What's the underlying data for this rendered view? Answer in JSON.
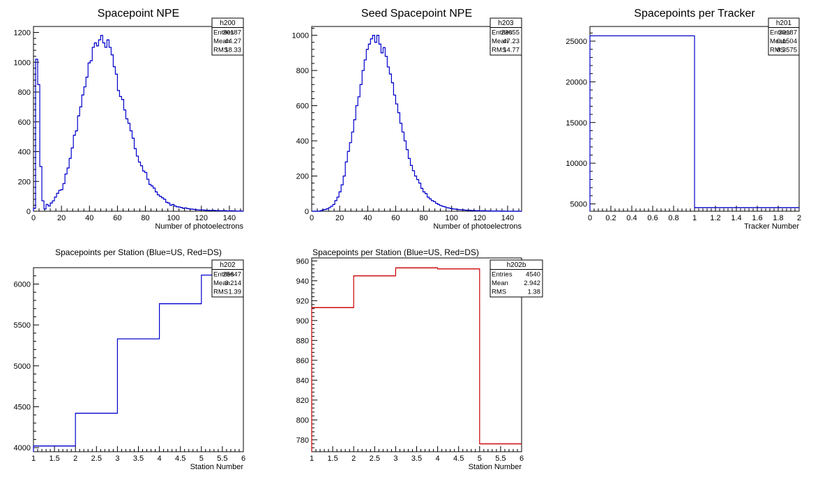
{
  "chart_data": [
    {
      "id": "h200",
      "type": "histogram",
      "title": "Spacepoint NPE",
      "xlabel": "Number of photoelectrons",
      "ylabel": "",
      "xlim": [
        0,
        150
      ],
      "ylim": [
        0,
        1240
      ],
      "xticks": [
        0,
        20,
        40,
        60,
        80,
        100,
        120,
        140
      ],
      "yticks": [
        0,
        200,
        400,
        600,
        800,
        1000,
        1200
      ],
      "line_color": "#0000cc",
      "bin_width": 1.5,
      "values": [
        20,
        1020,
        850,
        300,
        70,
        15,
        45,
        35,
        55,
        70,
        95,
        120,
        140,
        145,
        185,
        250,
        290,
        355,
        425,
        510,
        540,
        640,
        700,
        780,
        835,
        900,
        995,
        1010,
        1100,
        1130,
        1110,
        1150,
        1180,
        1130,
        1100,
        1150,
        1100,
        1050,
        970,
        920,
        810,
        770,
        750,
        680,
        620,
        590,
        540,
        490,
        420,
        370,
        330,
        305,
        270,
        260,
        215,
        180,
        170,
        155,
        130,
        110,
        100,
        90,
        80,
        60,
        55,
        40,
        45,
        35,
        30,
        28,
        25,
        20,
        22,
        18,
        15,
        14,
        12,
        10,
        9,
        8,
        9,
        7,
        6,
        6,
        5,
        6,
        5,
        4,
        4,
        3,
        3,
        4,
        2,
        2,
        3,
        2,
        2,
        1,
        2,
        1
      ],
      "stats": {
        "name": "h200",
        "rows": [
          [
            "Entries",
            "30187"
          ],
          [
            "Mean",
            "44.27"
          ],
          [
            "RMS",
            "18.33"
          ]
        ]
      }
    },
    {
      "id": "h203",
      "type": "histogram",
      "title": "Seed Spacepoint NPE",
      "xlabel": "Number of photoelectrons",
      "ylabel": "",
      "xlim": [
        0,
        150
      ],
      "ylim": [
        0,
        1050
      ],
      "xticks": [
        0,
        20,
        40,
        60,
        80,
        100,
        120,
        140
      ],
      "yticks": [
        0,
        200,
        400,
        600,
        800,
        1000
      ],
      "line_color": "#0000cc",
      "bin_width": 1.5,
      "values": [
        0,
        0,
        0,
        0,
        3,
        8,
        10,
        14,
        20,
        28,
        38,
        60,
        80,
        110,
        150,
        200,
        280,
        340,
        390,
        450,
        520,
        600,
        650,
        720,
        800,
        860,
        920,
        950,
        980,
        1000,
        960,
        1000,
        950,
        900,
        930,
        880,
        820,
        780,
        730,
        660,
        610,
        560,
        500,
        450,
        400,
        350,
        300,
        260,
        230,
        200,
        180,
        160,
        130,
        110,
        100,
        80,
        70,
        60,
        55,
        45,
        38,
        32,
        28,
        25,
        20,
        18,
        15,
        13,
        12,
        10,
        9,
        8,
        7,
        6,
        5,
        5,
        4,
        4,
        3,
        3,
        2,
        3,
        2,
        2,
        2,
        1,
        1,
        1,
        1,
        1,
        0,
        1,
        0,
        0,
        0,
        0,
        0,
        0,
        0,
        0
      ],
      "stats": {
        "name": "h203",
        "rows": [
          [
            "Entries",
            "23055"
          ],
          [
            "Mean",
            "47.23"
          ],
          [
            "RMS",
            "14.77"
          ]
        ]
      }
    },
    {
      "id": "h201",
      "type": "histogram",
      "title": "Spacepoints per Tracker",
      "xlabel": "Tracker Number",
      "ylabel": "",
      "xlim": [
        0,
        2
      ],
      "ylim": [
        4100,
        26800
      ],
      "xticks": [
        0,
        0.2,
        0.4,
        0.6,
        0.8,
        1,
        1.2,
        1.4,
        1.6,
        1.8,
        2
      ],
      "xtick_labels": [
        "0",
        "0.2",
        "0.4",
        "0.6",
        "0.8",
        "1",
        "1.2",
        "1.4",
        "1.6",
        "1.8",
        "2"
      ],
      "yticks": [
        5000,
        10000,
        15000,
        20000,
        25000
      ],
      "line_color": "#0000cc",
      "bin_edges": [
        0,
        1,
        2
      ],
      "values": [
        25647,
        4540
      ],
      "stats": {
        "name": "h201",
        "rows": [
          [
            "Entries",
            "30187"
          ],
          [
            "Mean",
            "0.1504"
          ],
          [
            "RMS",
            "0.3575"
          ]
        ]
      }
    },
    {
      "id": "h202",
      "type": "histogram",
      "title": "Spacepoints per Station (Blue=US, Red=DS)",
      "xlabel": "Station Number",
      "ylabel": "",
      "xlim": [
        1,
        6
      ],
      "ylim": [
        3950,
        6200
      ],
      "xticks": [
        1,
        1.5,
        2,
        2.5,
        3,
        3.5,
        4,
        4.5,
        5,
        5.5,
        6
      ],
      "xtick_labels": [
        "1",
        "1.5",
        "2",
        "2.5",
        "3",
        "3.5",
        "4",
        "4.5",
        "5",
        "5.5",
        "6"
      ],
      "yticks": [
        4000,
        4500,
        5000,
        5500,
        6000
      ],
      "line_color": "#0000cc",
      "bin_edges": [
        1,
        2,
        3,
        4,
        5,
        6
      ],
      "values": [
        4020,
        4420,
        5330,
        5760,
        6110
      ],
      "stats": {
        "name": "h202",
        "rows": [
          [
            "Entries",
            "25647"
          ],
          [
            "Mean",
            "3.214"
          ],
          [
            "RMS",
            "1.39"
          ]
        ]
      }
    },
    {
      "id": "h202b",
      "type": "histogram",
      "title": "Spacepoints per Station (Blue=US, Red=DS)",
      "xlabel": "Station Number",
      "ylabel": "",
      "xlim": [
        1,
        6
      ],
      "ylim": [
        768,
        963
      ],
      "xticks": [
        1,
        1.5,
        2,
        2.5,
        3,
        3.5,
        4,
        4.5,
        5,
        5.5,
        6
      ],
      "xtick_labels": [
        "1",
        "1.5",
        "2",
        "2.5",
        "3",
        "3.5",
        "4",
        "4.5",
        "5",
        "5.5",
        "6"
      ],
      "yticks": [
        780,
        800,
        820,
        840,
        860,
        880,
        900,
        920,
        940,
        960
      ],
      "line_color": "#cc0000",
      "bin_edges": [
        1,
        2,
        3,
        4,
        5,
        6
      ],
      "values": [
        913,
        945,
        953,
        952,
        776
      ],
      "stats": {
        "name": "h202b",
        "rows": [
          [
            "Entries",
            "4540"
          ],
          [
            "Mean",
            "2.942"
          ],
          [
            "RMS",
            "1.38"
          ]
        ]
      }
    }
  ]
}
